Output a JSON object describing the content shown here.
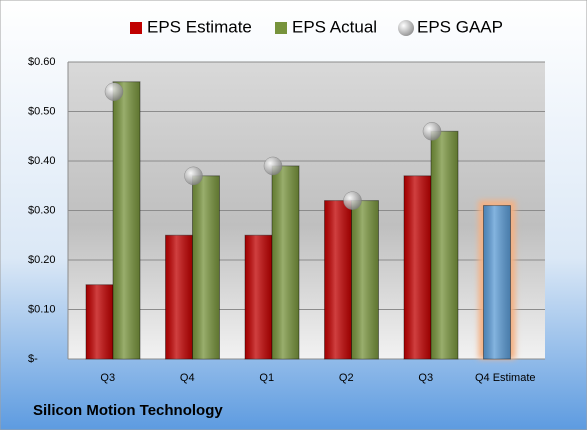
{
  "chart_data": {
    "type": "bar",
    "title": "Silicon Motion Technology",
    "categories": [
      "Q3",
      "Q4",
      "Q1",
      "Q2",
      "Q3",
      "Q4 Estimate"
    ],
    "series": [
      {
        "name": "EPS Estimate",
        "color": "#c00000",
        "values": [
          0.15,
          0.25,
          0.25,
          0.32,
          0.37,
          0.31
        ],
        "highlight": {
          "index": 5,
          "color": "#5b9bd5",
          "glow": "#f4b183"
        }
      },
      {
        "name": "EPS Actual",
        "color": "#77933c",
        "values": [
          0.56,
          0.37,
          0.39,
          0.32,
          0.46,
          null
        ]
      },
      {
        "name": "EPS GAAP",
        "color": "#a6a6a6",
        "marker": "circle",
        "values": [
          0.54,
          0.37,
          0.39,
          0.32,
          0.46,
          null
        ]
      }
    ],
    "ylim": [
      0,
      0.6
    ],
    "yticks": [
      {
        "value": 0,
        "label": "$-"
      },
      {
        "value": 0.1,
        "label": "$0.10"
      },
      {
        "value": 0.2,
        "label": "$0.20"
      },
      {
        "value": 0.3,
        "label": "$0.30"
      },
      {
        "value": 0.4,
        "label": "$0.40"
      },
      {
        "value": 0.5,
        "label": "$0.50"
      },
      {
        "value": 0.6,
        "label": "$0.60"
      }
    ],
    "grid": true
  }
}
